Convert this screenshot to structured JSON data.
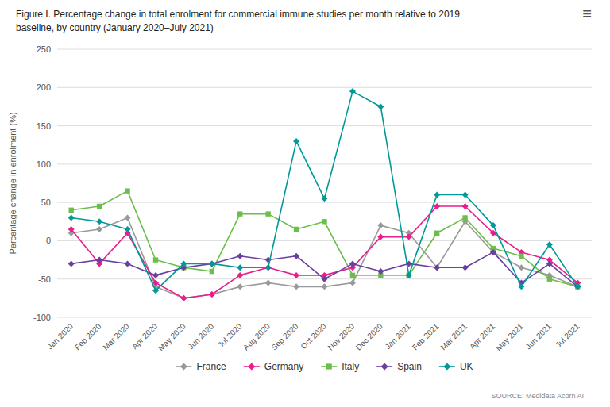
{
  "chart_data": {
    "type": "line",
    "title": "Figure I. Percentage change in total enrolment for commercial immune studies per month relative to 2019",
    "subtitle": "baseline, by country (January 2020–July 2021)",
    "y_label": "Percentage change in enrolment (%)",
    "annotations": [
      "SOURCE: Medidata Acorn AI",
      "≡"
    ],
    "categories": [
      "Jan 2020",
      "Feb 2020",
      "Mar 2020",
      "Apr 2020",
      "May 2020",
      "Jun 2020",
      "Jul 2020",
      "Aug 2020",
      "Sep 2020",
      "Oct 2020",
      "Nov 2020",
      "Dec 2020",
      "Jan 2021",
      "Feb 2021",
      "Mar 2021",
      "Apr 2021",
      "May 2021",
      "Jun 2021",
      "Jul 2021"
    ],
    "series": [
      {
        "name": "France",
        "color": "#999999",
        "marker": "diamond",
        "values": [
          10,
          15,
          30,
          -60,
          -75,
          -70,
          -60,
          -55,
          -60,
          -60,
          -55,
          20,
          10,
          -35,
          25,
          -15,
          -35,
          -45,
          -60
        ]
      },
      {
        "name": "Germany",
        "color": "#e91e8c",
        "marker": "diamond",
        "values": [
          15,
          -30,
          10,
          -55,
          -75,
          -70,
          -45,
          -35,
          -45,
          -45,
          -35,
          5,
          5,
          45,
          45,
          10,
          -15,
          -25,
          -55
        ]
      },
      {
        "name": "Italy",
        "color": "#6abf4b",
        "marker": "square",
        "values": [
          40,
          45,
          65,
          -25,
          -35,
          -40,
          35,
          35,
          15,
          25,
          -45,
          -45,
          -45,
          10,
          30,
          -10,
          -20,
          -50,
          -60
        ]
      },
      {
        "name": "Spain",
        "color": "#6a3fa0",
        "marker": "diamond",
        "values": [
          -30,
          -25,
          -30,
          -45,
          -35,
          -30,
          -20,
          -25,
          -20,
          -50,
          -30,
          -40,
          -30,
          -35,
          -35,
          -15,
          -55,
          -30,
          -60
        ]
      },
      {
        "name": "UK",
        "color": "#009999",
        "marker": "diamond",
        "values": [
          30,
          25,
          15,
          -65,
          -30,
          -30,
          -35,
          -35,
          130,
          55,
          195,
          175,
          -45,
          60,
          60,
          20,
          -60,
          -5,
          -60
        ]
      }
    ],
    "ylim": [
      -100,
      250
    ],
    "yticks": [
      -100,
      -50,
      0,
      50,
      100,
      150,
      200,
      250
    ],
    "grid": true,
    "legend": "bottom"
  }
}
